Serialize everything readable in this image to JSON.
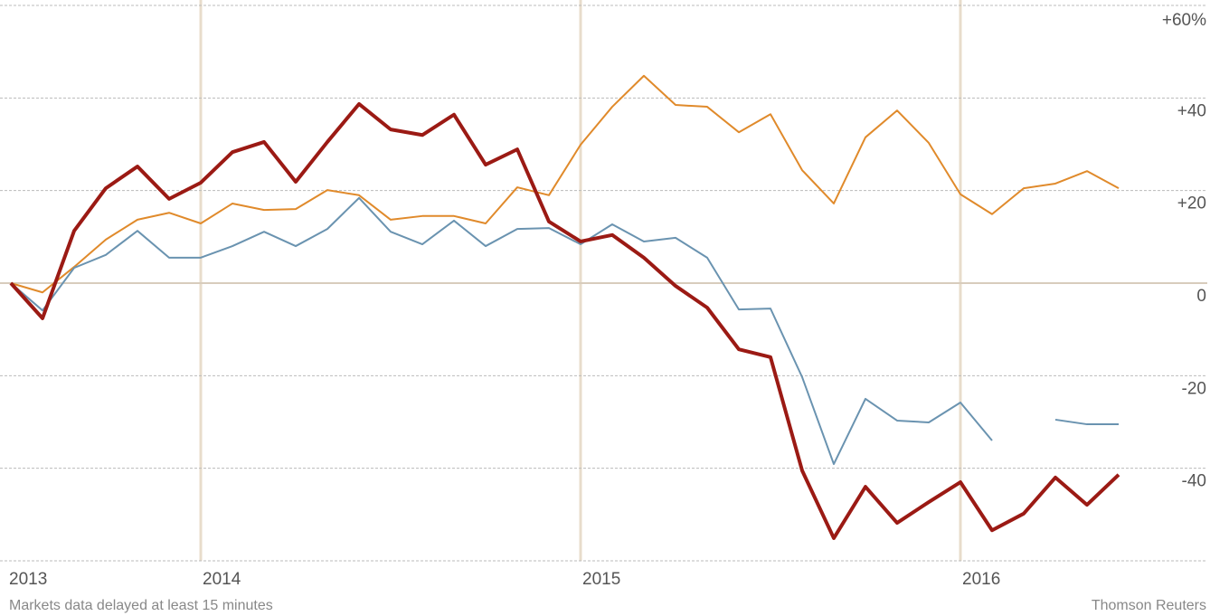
{
  "chart_data": {
    "type": "line",
    "categories": [
      "2013",
      null,
      null,
      null,
      null,
      null,
      "2014",
      null,
      null,
      null,
      null,
      null,
      null,
      null,
      null,
      null,
      null,
      null,
      "2015",
      null,
      null,
      null,
      null,
      null,
      null,
      null,
      null,
      null,
      null,
      null,
      "2016",
      null,
      null,
      null,
      null,
      null
    ],
    "series": [
      {
        "color": "#e08a2b",
        "values": [
          0,
          -2,
          3.5,
          9.4,
          13.7,
          15.2,
          12.9,
          17.2,
          15.8,
          16.0,
          20.1,
          19.0,
          13.7,
          14.5,
          14.5,
          12.9,
          20.7,
          19.0,
          29.9,
          38.1,
          44.8,
          38.5,
          38.1,
          32.6,
          36.5,
          24.4,
          17.2,
          31.5,
          37.3,
          30.3,
          19.2,
          14.9,
          20.5,
          21.5,
          24.2,
          20.5
        ]
      },
      {
        "color": "#6a93b0",
        "values": [
          0,
          -5.9,
          3.3,
          6.1,
          11.3,
          5.5,
          5.5,
          8.0,
          11.1,
          8.0,
          11.7,
          18.4,
          11.1,
          8.4,
          13.5,
          8.0,
          11.7,
          11.9,
          8.4,
          12.7,
          9.0,
          9.8,
          5.5,
          -5.7,
          -5.5,
          -20.3,
          -39.1,
          -25.0,
          -29.7,
          -30.1,
          -25.8,
          -34.0,
          null,
          -29.5,
          -30.5,
          -30.5
        ]
      },
      {
        "color": "#9b1a14",
        "values": [
          0,
          -7.6,
          11.3,
          20.5,
          25.2,
          18.2,
          21.7,
          28.3,
          30.5,
          21.9,
          30.5,
          38.7,
          33.2,
          32.0,
          36.4,
          25.6,
          28.9,
          13.3,
          9.0,
          10.4,
          5.5,
          -0.6,
          -5.3,
          -14.3,
          -16.0,
          -40.5,
          -55.1,
          -44.0,
          -51.8,
          -47.3,
          -43.0,
          -53.4,
          -49.8,
          -42.0,
          -47.9,
          -41.4
        ]
      }
    ],
    "ylim": [
      -60,
      60
    ],
    "yticks": [
      {
        "value": 60,
        "label": "+60%"
      },
      {
        "value": 40,
        "label": "+40"
      },
      {
        "value": 20,
        "label": "+20"
      },
      0,
      -20,
      -40
    ],
    "grid": true,
    "source_note": "Markets data delayed at least 15 minutes",
    "source": "Thomson Reuters"
  }
}
